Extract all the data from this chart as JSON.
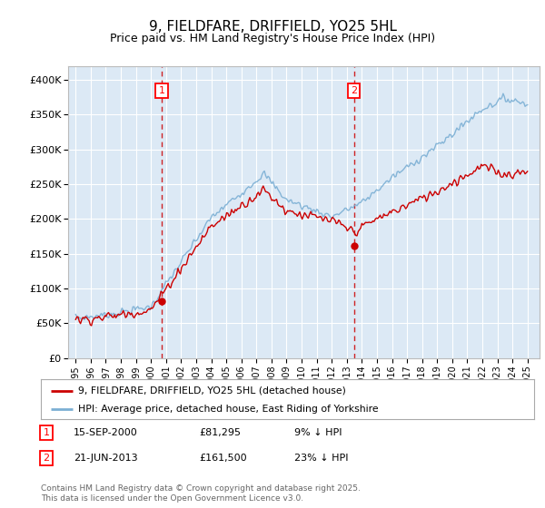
{
  "title": "9, FIELDFARE, DRIFFIELD, YO25 5HL",
  "subtitle": "Price paid vs. HM Land Registry's House Price Index (HPI)",
  "background_color": "#ffffff",
  "plot_bg_color": "#dce9f5",
  "grid_color": "#ffffff",
  "hpi_line_color": "#7bafd4",
  "price_line_color": "#cc0000",
  "sale1_date_x": 2000.71,
  "sale1_price": 81295,
  "sale2_date_x": 2013.47,
  "sale2_price": 161500,
  "ylim_min": 0,
  "ylim_max": 420000,
  "xlim_min": 1994.5,
  "xlim_max": 2025.8,
  "legend_line1": "9, FIELDFARE, DRIFFIELD, YO25 5HL (detached house)",
  "legend_line2": "HPI: Average price, detached house, East Riding of Yorkshire",
  "note1_date": "15-SEP-2000",
  "note1_price": "£81,295",
  "note1_hpi": "9% ↓ HPI",
  "note2_date": "21-JUN-2013",
  "note2_price": "£161,500",
  "note2_hpi": "23% ↓ HPI",
  "footer": "Contains HM Land Registry data © Crown copyright and database right 2025.\nThis data is licensed under the Open Government Licence v3.0."
}
